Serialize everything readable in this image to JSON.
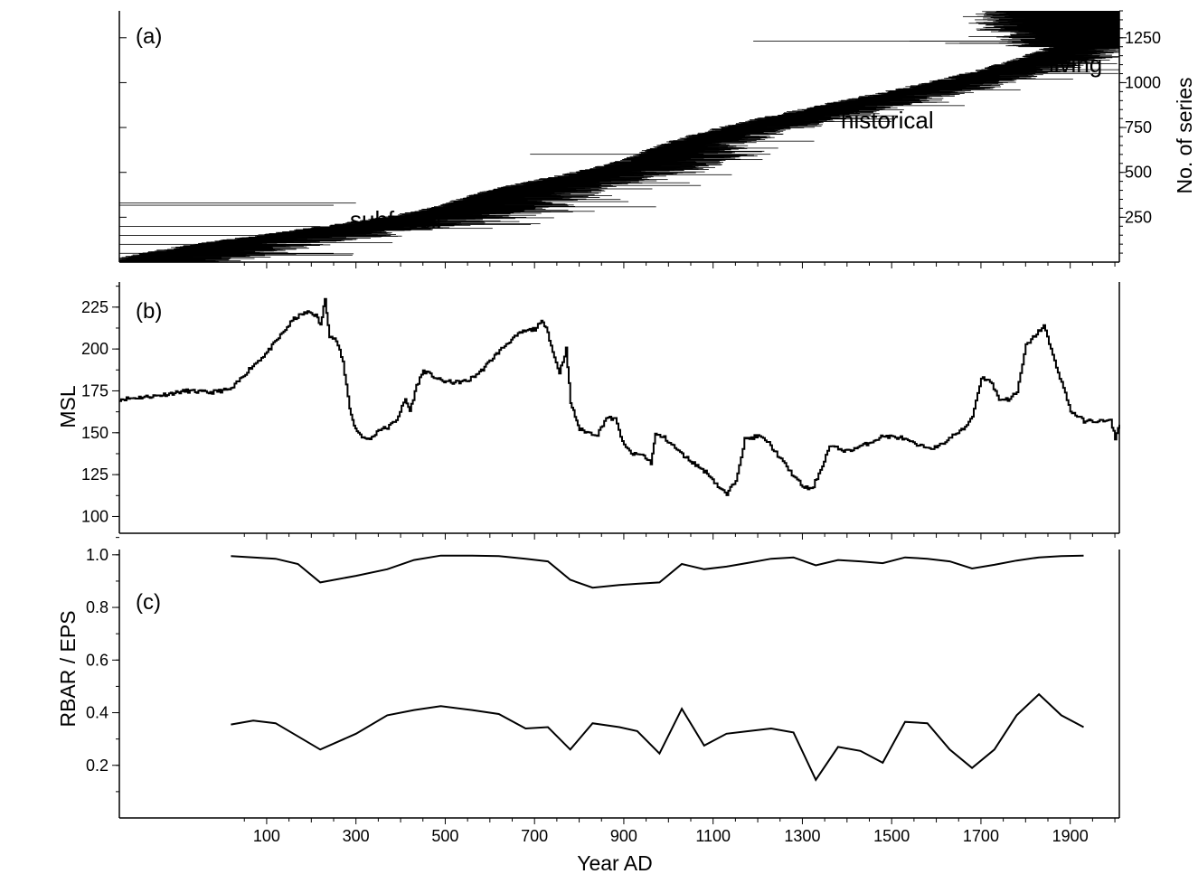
{
  "chart_data": [
    {
      "panel": "(a)",
      "type": "bar",
      "orientation": "horizontal",
      "description_note": "",
      "ylabel": "No. of series",
      "y_axis_side": "right",
      "ylim": [
        0,
        1400
      ],
      "yticks": [
        250,
        500,
        750,
        1000,
        1250
      ],
      "xlim": [
        -230,
        2010
      ],
      "annotations": [
        "subfossil",
        "historical",
        "living"
      ],
      "series_groups": [
        {
          "name": "subfossil",
          "index_range": [
            0,
            330
          ],
          "start_range": [
            -230,
            540
          ],
          "mean_length": 230
        },
        {
          "name": "subfossil",
          "index_range": [
            330,
            600
          ],
          "start_range": [
            540,
            960
          ],
          "mean_length": 200
        },
        {
          "name": "historical",
          "index_range": [
            600,
            1200
          ],
          "start_range": [
            960,
            1880
          ],
          "mean_length": 150
        },
        {
          "name": "living",
          "index_range": [
            1200,
            1400
          ],
          "start_range": [
            1720,
            1900
          ],
          "end": 2010
        }
      ]
    },
    {
      "panel": "(b)",
      "type": "line",
      "ylabel": "MSL",
      "ylim": [
        90,
        240
      ],
      "yticks": [
        100,
        125,
        150,
        175,
        200,
        225
      ],
      "xlim": [
        -230,
        2010
      ],
      "x": [
        -230,
        -150,
        -80,
        -30,
        20,
        60,
        100,
        130,
        160,
        180,
        195,
        210,
        220,
        230,
        240,
        255,
        270,
        285,
        295,
        305,
        320,
        335,
        350,
        370,
        390,
        410,
        420,
        435,
        450,
        470,
        490,
        520,
        550,
        580,
        610,
        640,
        670,
        700,
        715,
        725,
        740,
        755,
        770,
        780,
        790,
        800,
        820,
        840,
        860,
        880,
        900,
        920,
        940,
        960,
        970,
        990,
        1010,
        1030,
        1060,
        1090,
        1110,
        1130,
        1150,
        1170,
        1200,
        1220,
        1240,
        1260,
        1280,
        1300,
        1320,
        1340,
        1360,
        1400,
        1440,
        1480,
        1520,
        1560,
        1600,
        1640,
        1660,
        1680,
        1700,
        1720,
        1740,
        1760,
        1780,
        1800,
        1820,
        1840,
        1860,
        1880,
        1900,
        1930,
        1970,
        1990,
        2000,
        2010
      ],
      "values": [
        170,
        172,
        175,
        174,
        176,
        188,
        198,
        208,
        218,
        221,
        222,
        220,
        214,
        230,
        208,
        205,
        192,
        165,
        154,
        150,
        146,
        147,
        152,
        153,
        158,
        170,
        163,
        178,
        187,
        184,
        181,
        180,
        181,
        187,
        196,
        204,
        210,
        212,
        216,
        214,
        198,
        186,
        200,
        168,
        160,
        152,
        150,
        149,
        159,
        158,
        142,
        137,
        137,
        132,
        149,
        147,
        142,
        137,
        131,
        125,
        118,
        113,
        122,
        146,
        148,
        145,
        138,
        131,
        124,
        118,
        116,
        128,
        142,
        139,
        143,
        148,
        147,
        142,
        141,
        149,
        152,
        160,
        183,
        181,
        170,
        170,
        174,
        202,
        208,
        214,
        196,
        180,
        163,
        157,
        157,
        157,
        147,
        155
      ]
    },
    {
      "panel": "(c)",
      "type": "line",
      "ylabel": "RBAR / EPS",
      "ylim": [
        0.0,
        1.02
      ],
      "yticks": [
        0.2,
        0.4,
        0.6,
        0.8,
        1.0
      ],
      "xlim": [
        -230,
        2010
      ],
      "xlabel": "Year AD",
      "xticks": [
        100,
        300,
        500,
        700,
        900,
        1100,
        1300,
        1500,
        1700,
        1900
      ],
      "series": [
        {
          "name": "EPS",
          "x": [
            20,
            70,
            120,
            170,
            220,
            300,
            370,
            430,
            490,
            560,
            620,
            680,
            730,
            780,
            830,
            890,
            930,
            980,
            1030,
            1080,
            1130,
            1180,
            1230,
            1280,
            1330,
            1380,
            1430,
            1480,
            1530,
            1580,
            1630,
            1680,
            1730,
            1780,
            1830,
            1880,
            1930
          ],
          "values": [
            0.995,
            0.99,
            0.985,
            0.965,
            0.895,
            0.92,
            0.945,
            0.98,
            0.997,
            0.997,
            0.995,
            0.985,
            0.975,
            0.905,
            0.875,
            0.885,
            0.89,
            0.895,
            0.965,
            0.945,
            0.955,
            0.97,
            0.985,
            0.99,
            0.96,
            0.98,
            0.975,
            0.968,
            0.99,
            0.985,
            0.975,
            0.948,
            0.962,
            0.978,
            0.99,
            0.995,
            0.997
          ]
        },
        {
          "name": "RBAR",
          "x": [
            20,
            70,
            120,
            170,
            220,
            300,
            370,
            430,
            490,
            560,
            620,
            680,
            730,
            780,
            830,
            890,
            930,
            980,
            1030,
            1080,
            1130,
            1180,
            1230,
            1280,
            1330,
            1380,
            1430,
            1480,
            1530,
            1580,
            1630,
            1680,
            1730,
            1780,
            1830,
            1880,
            1930
          ],
          "values": [
            0.355,
            0.37,
            0.36,
            0.31,
            0.26,
            0.32,
            0.39,
            0.41,
            0.425,
            0.41,
            0.395,
            0.34,
            0.345,
            0.26,
            0.36,
            0.345,
            0.33,
            0.245,
            0.415,
            0.275,
            0.32,
            0.33,
            0.34,
            0.325,
            0.145,
            0.27,
            0.255,
            0.21,
            0.365,
            0.36,
            0.26,
            0.19,
            0.26,
            0.39,
            0.47,
            0.39,
            0.345
          ]
        }
      ]
    }
  ]
}
